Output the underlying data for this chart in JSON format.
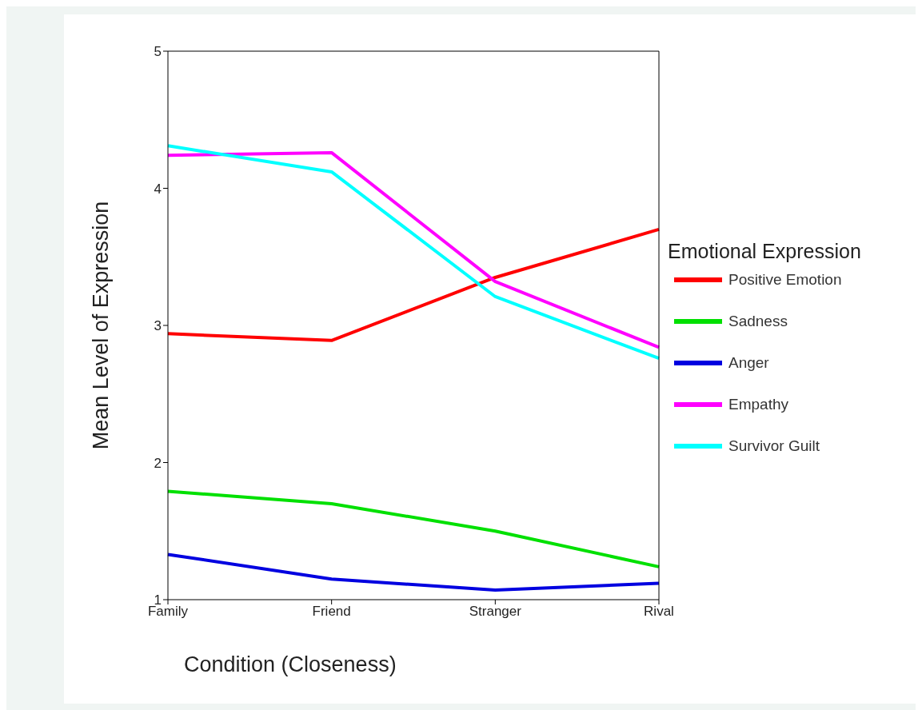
{
  "chart_data": {
    "type": "line",
    "xlabel": "Condition (Closeness)",
    "ylabel": "Mean Level of Expression",
    "legend_title": "Emotional Expression",
    "categories": [
      "Family",
      "Friend",
      "Stranger",
      "Rival"
    ],
    "ylim": [
      1,
      5
    ],
    "yticks": [
      1,
      2,
      3,
      4,
      5
    ],
    "grid": false,
    "legend": "right",
    "marker": "none",
    "line_style": "solid",
    "series": [
      {
        "name": "Positive Emotion",
        "color": "#ff0000",
        "values": [
          2.94,
          2.89,
          3.35,
          3.7
        ]
      },
      {
        "name": "Sadness",
        "color": "#00e000",
        "values": [
          1.79,
          1.7,
          1.5,
          1.24
        ]
      },
      {
        "name": "Anger",
        "color": "#0000e0",
        "values": [
          1.33,
          1.15,
          1.07,
          1.12
        ]
      },
      {
        "name": "Empathy",
        "color": "#ff00ff",
        "values": [
          4.24,
          4.26,
          3.32,
          2.84
        ]
      },
      {
        "name": "Survivor Guilt",
        "color": "#00ffff",
        "values": [
          4.31,
          4.12,
          3.21,
          2.76
        ]
      }
    ]
  }
}
